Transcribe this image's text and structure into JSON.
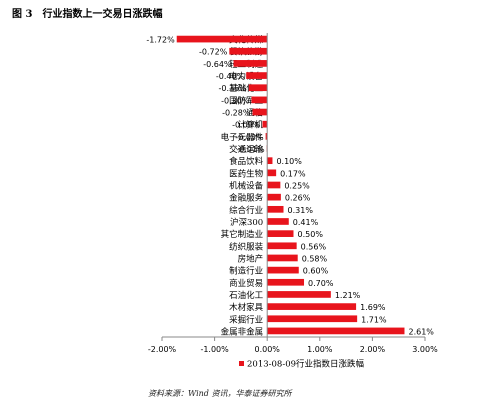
{
  "figure": {
    "label": "图 3",
    "title": "行业指数上一交易日涨跌幅"
  },
  "source_text": "资料来源：Wind 资讯，华泰证券研究所",
  "colors": {
    "bar": "#e8141c",
    "axis": "#888888",
    "text": "#000000"
  },
  "chart_data": {
    "type": "bar",
    "orientation": "horizontal",
    "categories": [
      "文化传媒",
      "餐饮旅游",
      "轻工制造",
      "电力设备",
      "基础化工",
      "国防军工",
      "通信",
      "计算机",
      "电子元器件",
      "交通运输",
      "食品饮料",
      "医药生物",
      "机械设备",
      "金融服务",
      "综合行业",
      "沪深300",
      "其它制造业",
      "纺织服装",
      "房地产",
      "制造行业",
      "商业贸易",
      "石油化工",
      "木材家具",
      "采掘行业",
      "金属非金属"
    ],
    "series": [
      {
        "name": "2013-08-09行业指数日涨跌幅",
        "values": [
          -1.72,
          -0.72,
          -0.64,
          -0.4,
          -0.35,
          -0.3,
          -0.28,
          -0.09,
          -0.03,
          -0.01,
          0.1,
          0.17,
          0.25,
          0.26,
          0.31,
          0.41,
          0.5,
          0.56,
          0.58,
          0.6,
          0.7,
          1.21,
          1.69,
          1.71,
          2.61
        ]
      }
    ],
    "data_labels": [
      "-1.72%",
      "-0.72%",
      "-0.64%",
      "-0.40%",
      "-0.35%",
      "-0.30%",
      "-0.28%",
      "-0.09%",
      "-0.03%",
      "-0.01%",
      "0.10%",
      "0.17%",
      "0.25%",
      "0.26%",
      "0.31%",
      "0.41%",
      "0.50%",
      "0.56%",
      "0.58%",
      "0.60%",
      "0.70%",
      "1.21%",
      "1.69%",
      "1.71%",
      "2.61%"
    ],
    "xlim": [
      -2.0,
      3.0
    ],
    "x_ticks": [
      -2,
      -1,
      0,
      1,
      2,
      3
    ],
    "x_tick_labels": [
      "-2.00%",
      "-1.00%",
      "0.00%",
      "1.00%",
      "2.00%",
      "3.00%"
    ],
    "legend": {
      "position": "bottom",
      "label": "2013-08-09行业指数日涨跌幅"
    },
    "grid": false
  }
}
